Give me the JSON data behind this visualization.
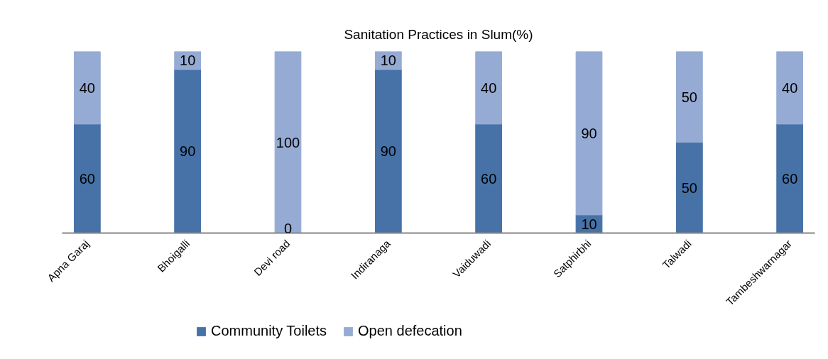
{
  "chart_data": {
    "type": "bar",
    "title": "Sanitation Practices in Slum(%)",
    "categories": [
      "Apna Garaj",
      "Bhoigalli",
      "Devi road",
      "Indiranaga",
      "Vaiduwadi",
      "Satphirbhi",
      "Talwadi",
      "Tambeshwarnagar"
    ],
    "series": [
      {
        "name": "Community Toilets",
        "color": "#4672a8",
        "values": [
          60,
          90,
          0,
          90,
          60,
          10,
          50,
          60
        ]
      },
      {
        "name": "Open defecation",
        "color": "#95abd4",
        "values": [
          40,
          10,
          100,
          10,
          40,
          90,
          50,
          40
        ]
      }
    ],
    "stacked": true,
    "ylim": [
      0,
      100
    ],
    "tick_labels": "x",
    "data_labels": true,
    "legend": "bottom",
    "grid": false
  }
}
